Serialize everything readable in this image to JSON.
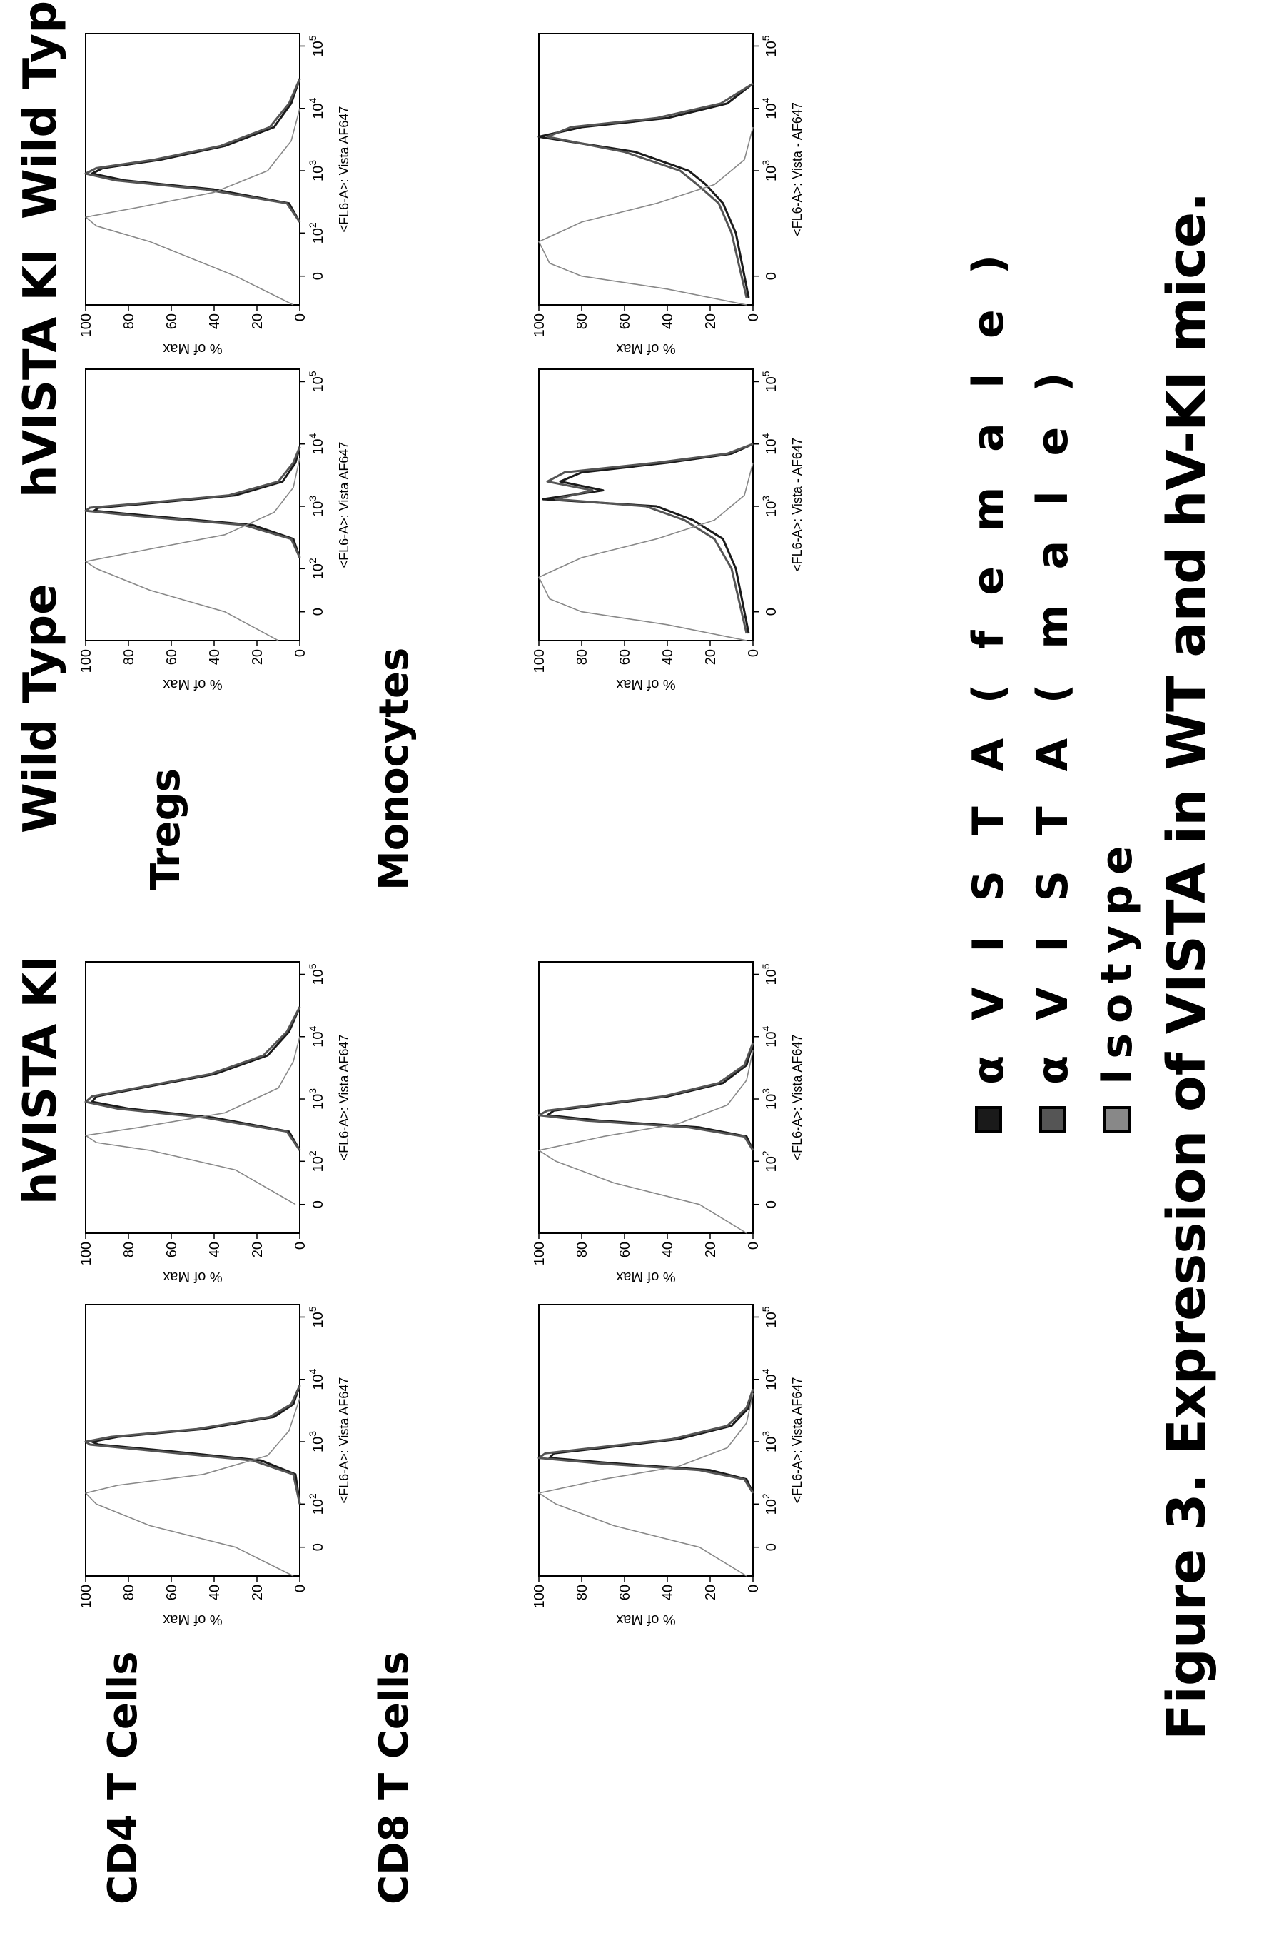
{
  "figure": {
    "caption": "Figure 3. Expression of VISTA in WT and hV-KI mice."
  },
  "row_labels": [
    "CD4 T Cells",
    "CD8 T Cells",
    "Tregs",
    "Monocytes"
  ],
  "column_labels": [
    "Wild Type",
    "hVISTA  KI",
    "Wild Type",
    "hVISTA  KI"
  ],
  "legend": {
    "items": [
      {
        "label": "α V I S T A ( f e m a l e )",
        "color": "#1a1a1a"
      },
      {
        "label": "α V I S T A ( m a l e )",
        "color": "#555555"
      },
      {
        "label": "Isotype",
        "color": "#888888"
      }
    ]
  },
  "chart_data": [
    {
      "type": "line",
      "panel": "CD4 T Cells / Wild Type",
      "xlabel": "<FL6-A>: Vista AF647",
      "ylabel": "% of Max",
      "yticks": [
        0,
        20,
        40,
        60,
        80,
        100
      ],
      "xticks": [
        "0",
        "10^2",
        "10^3",
        "10^4",
        "10^5"
      ],
      "ylim": [
        0,
        100
      ],
      "series": [
        {
          "name": "α V I S T A ( f e m a l e )",
          "x": [
            100,
            300,
            500,
            700,
            900,
            1000,
            1200,
            1600,
            2500,
            4000,
            8000
          ],
          "y": [
            0,
            2,
            18,
            60,
            94,
            97,
            85,
            45,
            12,
            3,
            0
          ]
        },
        {
          "name": "α V I S T A ( m a l e )",
          "x": [
            100,
            300,
            500,
            700,
            900,
            1000,
            1200,
            1600,
            2500,
            4000,
            8000
          ],
          "y": [
            0,
            3,
            22,
            66,
            98,
            100,
            88,
            48,
            14,
            4,
            0
          ]
        },
        {
          "name": "Isotype",
          "x": [
            -100,
            0,
            50,
            100,
            150,
            200,
            300,
            600,
            1500,
            5000
          ],
          "y": [
            3,
            30,
            70,
            95,
            100,
            85,
            45,
            15,
            5,
            0
          ]
        }
      ]
    },
    {
      "type": "line",
      "panel": "CD4 T Cells / hVISTA  KI",
      "xlabel": "<FL6-A>: Vista AF647",
      "ylabel": "% of Max",
      "yticks": [
        0,
        20,
        40,
        60,
        80,
        100
      ],
      "xticks": [
        "0",
        "10^2",
        "10^3",
        "10^4",
        "10^5"
      ],
      "ylim": [
        0,
        100
      ],
      "series": [
        {
          "name": "α V I S T A ( f e m a l e )",
          "x": [
            150,
            300,
            500,
            700,
            900,
            1100,
            1600,
            2500,
            5000,
            12000,
            30000
          ],
          "y": [
            0,
            5,
            40,
            80,
            97,
            95,
            70,
            40,
            15,
            5,
            0
          ]
        },
        {
          "name": "α V I S T A ( m a l e )",
          "x": [
            150,
            300,
            500,
            700,
            900,
            1100,
            1600,
            2500,
            5000,
            12000,
            30000
          ],
          "y": [
            0,
            6,
            44,
            85,
            100,
            97,
            72,
            42,
            17,
            6,
            0
          ]
        },
        {
          "name": "Isotype",
          "x": [
            0,
            80,
            150,
            200,
            260,
            350,
            600,
            1500,
            4000,
            10000
          ],
          "y": [
            2,
            30,
            70,
            95,
            100,
            75,
            35,
            10,
            3,
            0
          ]
        }
      ]
    },
    {
      "type": "line",
      "panel": "CD8 T Cells / Wild Type",
      "xlabel": "<FL6-A>: Vista AF647",
      "ylabel": "% of Max",
      "yticks": [
        0,
        20,
        40,
        60,
        80,
        100
      ],
      "xticks": [
        "0",
        "10^2",
        "10^3",
        "10^4",
        "10^5"
      ],
      "ylim": [
        0,
        100
      ],
      "series": [
        {
          "name": "α V I S T A ( f e m a l e )",
          "x": [
            150,
            250,
            350,
            450,
            550,
            650,
            800,
            1100,
            1800,
            3500,
            7000
          ],
          "y": [
            0,
            3,
            20,
            65,
            95,
            93,
            70,
            35,
            10,
            2,
            0
          ]
        },
        {
          "name": "α V I S T A ( m a l e )",
          "x": [
            150,
            250,
            350,
            450,
            550,
            650,
            800,
            1100,
            1800,
            3500,
            7000
          ],
          "y": [
            0,
            4,
            25,
            72,
            100,
            97,
            74,
            38,
            12,
            3,
            0
          ]
        },
        {
          "name": "Isotype",
          "x": [
            -100,
            0,
            50,
            100,
            150,
            250,
            400,
            800,
            2000,
            6000
          ],
          "y": [
            3,
            25,
            65,
            92,
            100,
            70,
            35,
            12,
            3,
            0
          ]
        }
      ]
    },
    {
      "type": "line",
      "panel": "CD8 T Cells / hVISTA  KI",
      "xlabel": "<FL6-A>: Vista AF647",
      "ylabel": "% of Max",
      "yticks": [
        0,
        20,
        40,
        60,
        80,
        100
      ],
      "xticks": [
        "0",
        "10^2",
        "10^3",
        "10^4",
        "10^5"
      ],
      "ylim": [
        0,
        100
      ],
      "series": [
        {
          "name": "α V I S T A ( f e m a l e )",
          "x": [
            150,
            250,
            350,
            450,
            550,
            650,
            800,
            1100,
            1800,
            3500,
            8000
          ],
          "y": [
            0,
            3,
            25,
            72,
            96,
            93,
            72,
            40,
            14,
            3,
            0
          ]
        },
        {
          "name": "α V I S T A ( m a l e )",
          "x": [
            150,
            250,
            350,
            450,
            550,
            650,
            800,
            1100,
            1800,
            3500,
            8000
          ],
          "y": [
            0,
            4,
            30,
            78,
            100,
            96,
            75,
            42,
            16,
            4,
            0
          ]
        },
        {
          "name": "Isotype",
          "x": [
            -100,
            0,
            50,
            100,
            150,
            250,
            400,
            800,
            2000,
            6000
          ],
          "y": [
            3,
            25,
            65,
            92,
            100,
            70,
            35,
            12,
            3,
            0
          ]
        }
      ]
    },
    {
      "type": "line",
      "panel": "Tregs / Wild Type",
      "xlabel": "<FL6-A>: Vista AF647",
      "ylabel": "% of Max",
      "yticks": [
        0,
        20,
        40,
        60,
        80,
        100
      ],
      "xticks": [
        "0",
        "10^2",
        "10^3",
        "10^4",
        "10^5"
      ],
      "ylim": [
        0,
        100
      ],
      "series": [
        {
          "name": "α V I S T A ( f e m a l e )",
          "x": [
            150,
            300,
            500,
            700,
            850,
            950,
            1100,
            1500,
            2500,
            5000,
            9000
          ],
          "y": [
            0,
            3,
            22,
            70,
            96,
            94,
            72,
            30,
            8,
            2,
            0
          ]
        },
        {
          "name": "α V I S T A ( m a l e )",
          "x": [
            150,
            300,
            500,
            700,
            850,
            950,
            1100,
            1500,
            2500,
            5000,
            9000
          ],
          "y": [
            0,
            4,
            26,
            76,
            100,
            98,
            76,
            33,
            10,
            3,
            0
          ]
        },
        {
          "name": "Isotype",
          "x": [
            -200,
            0,
            50,
            100,
            130,
            200,
            350,
            800,
            2000,
            6000
          ],
          "y": [
            10,
            35,
            70,
            95,
            100,
            72,
            35,
            12,
            3,
            0
          ]
        }
      ]
    },
    {
      "type": "line",
      "panel": "Tregs / hVISTA  KI",
      "xlabel": "<FL6-A>: Vista AF647",
      "ylabel": "% of Max",
      "yticks": [
        0,
        20,
        40,
        60,
        80,
        100
      ],
      "xticks": [
        "0",
        "10^2",
        "10^3",
        "10^4",
        "10^5"
      ],
      "ylim": [
        0,
        100
      ],
      "series": [
        {
          "name": "α V I S T A ( f e m a l e )",
          "x": [
            150,
            300,
            500,
            700,
            900,
            1100,
            1500,
            2500,
            5000,
            12000,
            30000
          ],
          "y": [
            0,
            5,
            40,
            82,
            97,
            92,
            65,
            35,
            12,
            4,
            0
          ]
        },
        {
          "name": "α V I S T A ( m a l e )",
          "x": [
            150,
            300,
            500,
            700,
            900,
            1100,
            1500,
            2500,
            5000,
            12000,
            30000
          ],
          "y": [
            0,
            6,
            44,
            86,
            100,
            95,
            68,
            37,
            14,
            5,
            0
          ]
        },
        {
          "name": "Isotype",
          "x": [
            -200,
            0,
            80,
            130,
            180,
            260,
            450,
            1000,
            3000,
            10000
          ],
          "y": [
            3,
            30,
            70,
            95,
            100,
            75,
            40,
            15,
            4,
            0
          ]
        }
      ]
    },
    {
      "type": "line",
      "panel": "Monocytes / Wild Type",
      "xlabel": "<FL6-A>: Vista - AF647",
      "ylabel": "% of Max",
      "yticks": [
        0,
        20,
        40,
        60,
        80,
        100
      ],
      "xticks": [
        "0",
        "10^3",
        "10^4",
        "10^5"
      ],
      "ylim": [
        0,
        100
      ],
      "series": [
        {
          "name": "α V I S T A ( f e m a l e )",
          "x": [
            -50,
            100,
            300,
            600,
            1000,
            1300,
            1800,
            2500,
            3500,
            5000,
            7000,
            10000
          ],
          "y": [
            2,
            8,
            14,
            28,
            45,
            98,
            70,
            90,
            80,
            40,
            10,
            0
          ]
        },
        {
          "name": "α V I S T A ( m a l e )",
          "x": [
            -50,
            100,
            300,
            600,
            1000,
            1300,
            1800,
            2500,
            3500,
            5000,
            7000,
            10000
          ],
          "y": [
            3,
            10,
            18,
            32,
            50,
            92,
            75,
            96,
            88,
            45,
            12,
            0
          ]
        },
        {
          "name": "Isotype",
          "x": [
            -100,
            -30,
            0,
            30,
            80,
            150,
            300,
            600,
            1500,
            5000
          ],
          "y": [
            3,
            40,
            80,
            95,
            100,
            80,
            45,
            18,
            4,
            0
          ]
        }
      ]
    },
    {
      "type": "line",
      "panel": "Monocytes / hVISTA  KI",
      "xlabel": "<FL6-A>: Vista - AF647",
      "ylabel": "% of Max",
      "yticks": [
        0,
        20,
        40,
        60,
        80,
        100
      ],
      "xticks": [
        "0",
        "10^3",
        "10^4",
        "10^5"
      ],
      "ylim": [
        0,
        100
      ],
      "series": [
        {
          "name": "α V I S T A ( f e m a l e )",
          "x": [
            -50,
            100,
            300,
            600,
            1000,
            2000,
            3500,
            5000,
            7000,
            12000,
            25000
          ],
          "y": [
            2,
            8,
            14,
            22,
            30,
            55,
            100,
            80,
            40,
            12,
            0
          ]
        },
        {
          "name": "α V I S T A ( m a l e )",
          "x": [
            -50,
            100,
            300,
            600,
            1000,
            2000,
            3500,
            5000,
            7000,
            12000,
            25000
          ],
          "y": [
            3,
            10,
            16,
            26,
            34,
            60,
            96,
            85,
            45,
            15,
            0
          ]
        },
        {
          "name": "Isotype",
          "x": [
            -100,
            -30,
            0,
            30,
            80,
            150,
            300,
            600,
            1500,
            5000
          ],
          "y": [
            3,
            40,
            80,
            95,
            100,
            80,
            45,
            18,
            4,
            0
          ]
        }
      ]
    }
  ]
}
